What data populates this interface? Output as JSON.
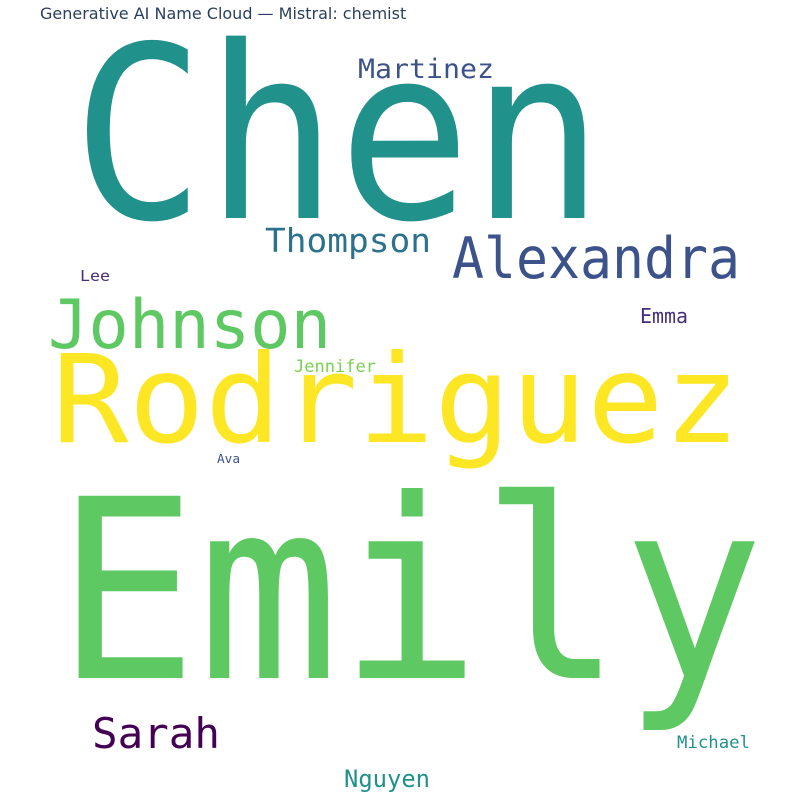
{
  "title": "Generative AI Name Cloud — Mistral: chemist",
  "chart_data": {
    "type": "wordcloud",
    "title": "Generative AI Name Cloud — Mistral: chemist",
    "words": [
      {
        "text": "Chen",
        "color": "#21918c"
      },
      {
        "text": "Martinez",
        "color": "#3b528b"
      },
      {
        "text": "Thompson",
        "color": "#2c728e"
      },
      {
        "text": "Alexandra",
        "color": "#3b528b"
      },
      {
        "text": "Lee",
        "color": "#472d7b"
      },
      {
        "text": "Johnson",
        "color": "#5ec962"
      },
      {
        "text": "Emma",
        "color": "#472d7b"
      },
      {
        "text": "Jennifer",
        "color": "#7ad151"
      },
      {
        "text": "Rodriguez",
        "color": "#fde725"
      },
      {
        "text": "Ava",
        "color": "#3b528b"
      },
      {
        "text": "Emily",
        "color": "#5ec962"
      },
      {
        "text": "Sarah",
        "color": "#440154"
      },
      {
        "text": "Michael",
        "color": "#21918c"
      },
      {
        "text": "Nguyen",
        "color": "#21918c"
      }
    ]
  }
}
